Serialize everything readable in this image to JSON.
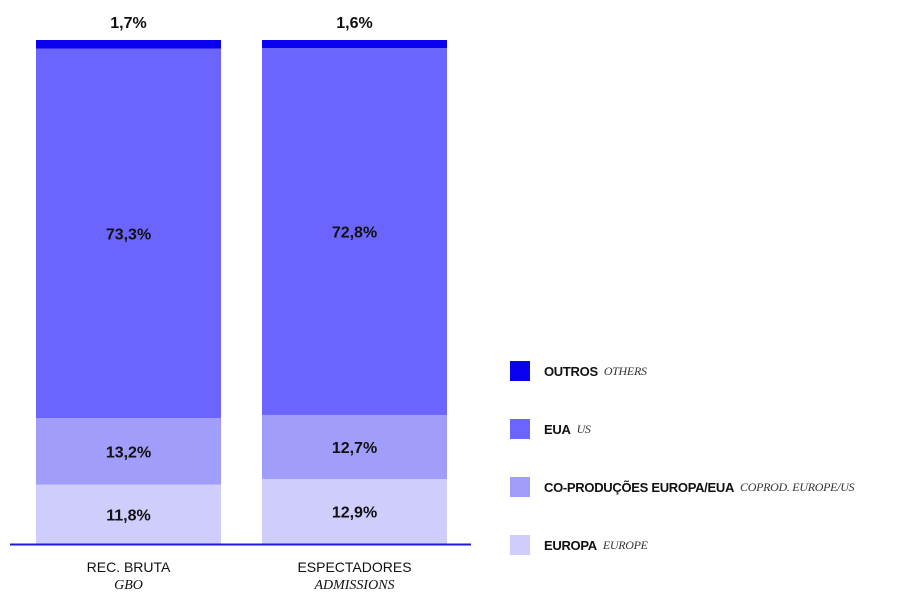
{
  "chart_data": {
    "type": "bar",
    "stacked": true,
    "percent": true,
    "categories": [
      {
        "main": "REC. BRUTA",
        "sub": "GBO"
      },
      {
        "main": "ESPECTADORES",
        "sub": "ADMISSIONS"
      }
    ],
    "series": [
      {
        "key": "europa",
        "name": "EUROPA",
        "name_en": "EUROPE",
        "color": "#cfcdfc",
        "values": [
          11.8,
          12.9
        ],
        "labels": [
          "11,8%",
          "12,9%"
        ]
      },
      {
        "key": "coprod",
        "name": "CO-PRODUÇÕES EUROPA/EUA",
        "name_en": "COPROD. EUROPE/US",
        "color": "#a09dfb",
        "values": [
          13.2,
          12.7
        ],
        "labels": [
          "13,2%",
          "12,7%"
        ]
      },
      {
        "key": "eua",
        "name": "EUA",
        "name_en": "US",
        "color": "#6b65fe",
        "values": [
          73.3,
          72.8
        ],
        "labels": [
          "73,3%",
          "72,8%"
        ]
      },
      {
        "key": "outros",
        "name": "OUTROS",
        "name_en": "OTHERS",
        "color": "#0a00f0",
        "values": [
          1.7,
          1.6
        ],
        "labels": [
          "1,7%",
          "1,6%"
        ]
      }
    ],
    "legend_order": [
      "outros",
      "eua",
      "coprod",
      "europa"
    ],
    "legend_position": "right",
    "ylim": [
      0,
      100
    ],
    "grid": false,
    "baseline_color": "#1f18d8"
  }
}
